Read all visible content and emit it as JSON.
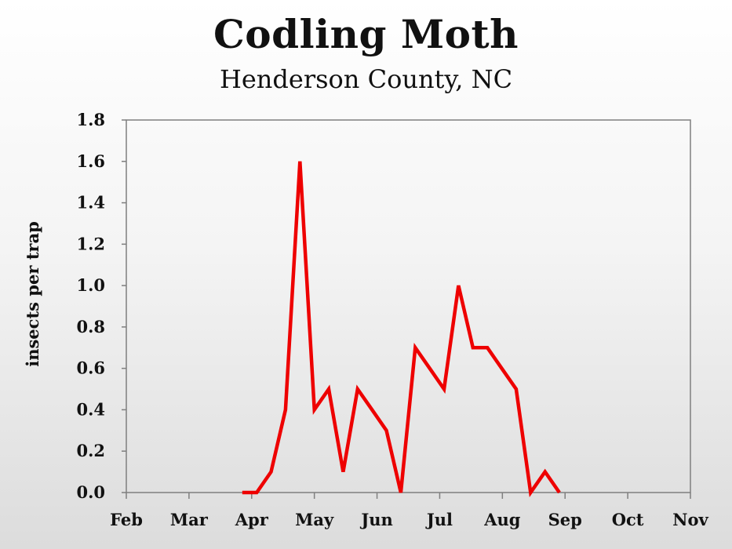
{
  "chart_data": {
    "type": "line",
    "title": "Codling Moth",
    "subtitle": "Henderson County, NC",
    "ylabel": "insects per trap",
    "xlabel": "",
    "ylim": [
      0,
      1.8
    ],
    "y_ticks": [
      "0.0",
      "0.2",
      "0.4",
      "0.6",
      "0.8",
      "1.0",
      "1.2",
      "1.4",
      "1.6",
      "1.8"
    ],
    "x_ticks": [
      "Feb",
      "Mar",
      "Apr",
      "May",
      "Jun",
      "Jul",
      "Aug",
      "Sep",
      "Oct",
      "Nov"
    ],
    "x_unit": "month",
    "xlim": [
      0,
      9
    ],
    "grid": false,
    "legend": "none",
    "series": [
      {
        "color": "#ee0000",
        "points": [
          {
            "x": 1.85,
            "y": 0.0
          },
          {
            "x": 2.08,
            "y": 0.0
          },
          {
            "x": 2.31,
            "y": 0.1
          },
          {
            "x": 2.54,
            "y": 0.4
          },
          {
            "x": 2.77,
            "y": 1.6
          },
          {
            "x": 3.0,
            "y": 0.4
          },
          {
            "x": 3.23,
            "y": 0.5
          },
          {
            "x": 3.46,
            "y": 0.1
          },
          {
            "x": 3.69,
            "y": 0.5
          },
          {
            "x": 3.92,
            "y": 0.4
          },
          {
            "x": 4.15,
            "y": 0.3
          },
          {
            "x": 4.38,
            "y": 0.0
          },
          {
            "x": 4.61,
            "y": 0.7
          },
          {
            "x": 4.84,
            "y": 0.6
          },
          {
            "x": 5.07,
            "y": 0.5
          },
          {
            "x": 5.3,
            "y": 1.0
          },
          {
            "x": 5.53,
            "y": 0.7
          },
          {
            "x": 5.76,
            "y": 0.7
          },
          {
            "x": 5.99,
            "y": 0.6
          },
          {
            "x": 6.22,
            "y": 0.5
          },
          {
            "x": 6.45,
            "y": 0.0
          },
          {
            "x": 6.68,
            "y": 0.1
          },
          {
            "x": 6.91,
            "y": 0.0
          }
        ]
      }
    ]
  }
}
